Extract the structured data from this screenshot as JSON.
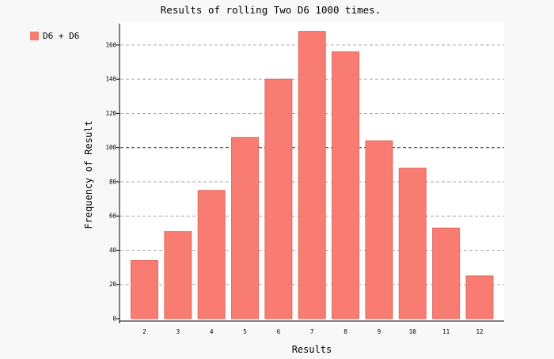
{
  "chart_data": {
    "type": "bar",
    "title": "Results of rolling Two D6 1000 times.",
    "xlabel": "Results",
    "ylabel": "Frequency of Result",
    "categories": [
      "2",
      "3",
      "4",
      "5",
      "6",
      "7",
      "8",
      "9",
      "10",
      "11",
      "12"
    ],
    "series": [
      {
        "name": "D6 + D6",
        "color": "#f87c72",
        "values": [
          34,
          51,
          75,
          106,
          140,
          168,
          156,
          104,
          88,
          53,
          25
        ]
      }
    ],
    "ylim": [
      0,
      170
    ],
    "yticks": [
      "0",
      "20",
      "40",
      "60",
      "80",
      "100",
      "120",
      "140",
      "160"
    ],
    "grid": true,
    "legend_position": "top-left"
  }
}
